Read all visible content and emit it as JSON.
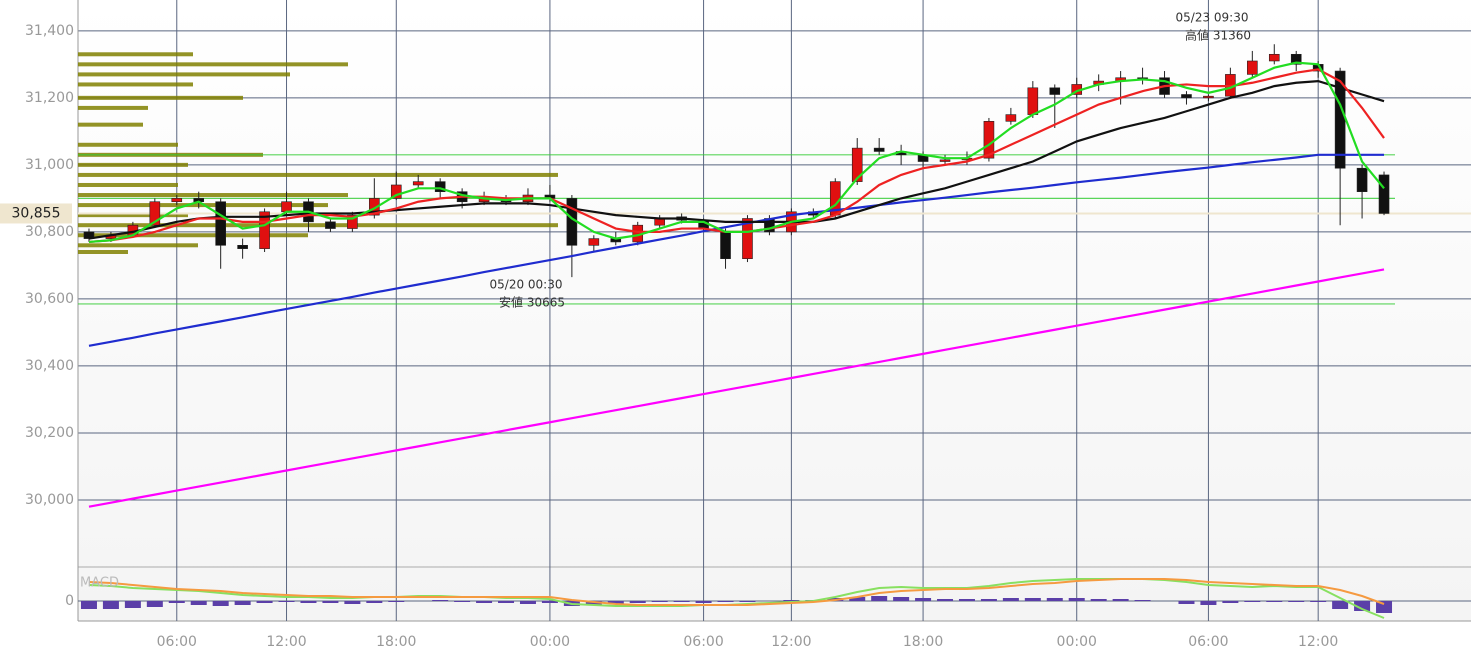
{
  "chart_data": {
    "type": "candlestick",
    "categories": [
      null,
      null,
      null,
      null,
      "06:00",
      null,
      null,
      null,
      null,
      "12:00",
      null,
      null,
      null,
      null,
      "18:00",
      null,
      null,
      null,
      null,
      null,
      null,
      "00:00",
      null,
      null,
      null,
      null,
      null,
      null,
      "06:00",
      null,
      null,
      null,
      "12:00",
      null,
      null,
      null,
      null,
      null,
      "18:00",
      null,
      null,
      null,
      null,
      null,
      null,
      "00:00",
      null,
      null,
      null,
      null,
      null,
      "06:00",
      null,
      null,
      null,
      null,
      "12:00",
      null,
      null,
      null
    ],
    "candles": [
      [
        30800,
        30810,
        30770,
        30780
      ],
      [
        30780,
        30800,
        30770,
        30790
      ],
      [
        30790,
        30830,
        30785,
        30820
      ],
      [
        30820,
        30900,
        30815,
        30890
      ],
      [
        30890,
        30910,
        30880,
        30900
      ],
      [
        30900,
        30920,
        30870,
        30890
      ],
      [
        30890,
        30900,
        30690,
        30760
      ],
      [
        30760,
        30780,
        30720,
        30750
      ],
      [
        30750,
        30870,
        30740,
        30860
      ],
      [
        30860,
        30920,
        30850,
        30890
      ],
      [
        30890,
        30900,
        30800,
        30830
      ],
      [
        30830,
        30840,
        30800,
        30810
      ],
      [
        30810,
        30860,
        30800,
        30850
      ],
      [
        30850,
        30960,
        30840,
        30900
      ],
      [
        30900,
        30980,
        30895,
        30940
      ],
      [
        30940,
        30970,
        30930,
        30950
      ],
      [
        30950,
        30960,
        30900,
        30920
      ],
      [
        30920,
        30930,
        30870,
        30890
      ],
      [
        30890,
        30920,
        30880,
        30900
      ],
      [
        30900,
        30910,
        30880,
        30890
      ],
      [
        30890,
        30930,
        30880,
        30910
      ],
      [
        30910,
        30940,
        30890,
        30900
      ],
      [
        30900,
        30910,
        30665,
        30760
      ],
      [
        30760,
        30790,
        30740,
        30780
      ],
      [
        30780,
        30800,
        30760,
        30770
      ],
      [
        30770,
        30830,
        30760,
        30820
      ],
      [
        30820,
        30850,
        30810,
        30840
      ],
      [
        30845,
        30855,
        30825,
        30835
      ],
      [
        30835,
        30840,
        30800,
        30810
      ],
      [
        30800,
        30810,
        30690,
        30720
      ],
      [
        30720,
        30850,
        30710,
        30840
      ],
      [
        30840,
        30850,
        30790,
        30800
      ],
      [
        30800,
        30870,
        30790,
        30860
      ],
      [
        30860,
        30870,
        30840,
        30850
      ],
      [
        30850,
        30960,
        30840,
        30950
      ],
      [
        30950,
        31080,
        30940,
        31050
      ],
      [
        31050,
        31080,
        31030,
        31040
      ],
      [
        31040,
        31060,
        31000,
        31030
      ],
      [
        31030,
        31040,
        30990,
        31010
      ],
      [
        31010,
        31030,
        31000,
        31015
      ],
      [
        31015,
        31040,
        31000,
        31020
      ],
      [
        31020,
        31140,
        31010,
        31130
      ],
      [
        31130,
        31170,
        31120,
        31150
      ],
      [
        31150,
        31250,
        31140,
        31230
      ],
      [
        31230,
        31240,
        31110,
        31210
      ],
      [
        31210,
        31260,
        31200,
        31240
      ],
      [
        31240,
        31270,
        31220,
        31250
      ],
      [
        31250,
        31280,
        31180,
        31260
      ],
      [
        31260,
        31290,
        31240,
        31255
      ],
      [
        31260,
        31280,
        31200,
        31210
      ],
      [
        31210,
        31220,
        31180,
        31200
      ],
      [
        31200,
        31210,
        31190,
        31205
      ],
      [
        31205,
        31290,
        31200,
        31270
      ],
      [
        31270,
        31340,
        31260,
        31310
      ],
      [
        31310,
        31360,
        31300,
        31330
      ],
      [
        31330,
        31340,
        31280,
        31300
      ],
      [
        31300,
        31310,
        31260,
        31280
      ],
      [
        31280,
        31290,
        30820,
        30990
      ],
      [
        30990,
        31000,
        30840,
        30920
      ],
      [
        30970,
        30980,
        30850,
        30855
      ]
    ],
    "up_color": "#e01010",
    "down_color": "#111111",
    "ylim": [
      29800,
      31492
    ],
    "yticks": [
      {
        "value": 30000,
        "label": "30,000"
      },
      {
        "value": 30200,
        "label": "30,200"
      },
      {
        "value": 30400,
        "label": "30,400"
      },
      {
        "value": 30600,
        "label": "30,600"
      },
      {
        "value": 30800,
        "label": "30,800"
      },
      {
        "value": 31000,
        "label": "31,000"
      },
      {
        "value": 31200,
        "label": "31,200"
      },
      {
        "value": 31400,
        "label": "31,400"
      }
    ],
    "grid": true,
    "series": [
      {
        "color": "#ff00ff",
        "values": [
          29980,
          29992,
          30004,
          30016,
          30028,
          30040,
          30052,
          30064,
          30076,
          30088,
          30100,
          30112,
          30124,
          30136,
          30148,
          30160,
          30172,
          30184,
          30196,
          30208,
          30220,
          30232,
          30244,
          30256,
          30268,
          30280,
          30292,
          30304,
          30316,
          30328,
          30340,
          30352,
          30364,
          30376,
          30388,
          30400,
          30412,
          30424,
          30436,
          30448,
          30460,
          30472,
          30484,
          30496,
          30508,
          30520,
          30532,
          30544,
          30556,
          30568,
          30580,
          30592,
          30604,
          30616,
          30628,
          30640,
          30652,
          30664,
          30676,
          30688
        ]
      },
      {
        "color": "#1f2ccf",
        "values": [
          30460,
          30472,
          30484,
          30497,
          30509,
          30521,
          30533,
          30545,
          30558,
          30570,
          30582,
          30594,
          30606,
          30619,
          30631,
          30643,
          30655,
          30667,
          30680,
          30692,
          30704,
          30716,
          30728,
          30741,
          30753,
          30765,
          30777,
          30789,
          30802,
          30814,
          30826,
          30838,
          30850,
          30858,
          30865,
          30872,
          30880,
          30888,
          30895,
          30902,
          30910,
          30918,
          30925,
          30932,
          30940,
          30948,
          30955,
          30962,
          30970,
          30978,
          30985,
          30992,
          31000,
          31008,
          31015,
          31022,
          31030,
          31030,
          31030,
          31030
        ]
      },
      {
        "color": "#111111",
        "values": [
          30780,
          30790,
          30800,
          30815,
          30830,
          30840,
          30845,
          30845,
          30845,
          30850,
          30855,
          30855,
          30855,
          30860,
          30865,
          30870,
          30875,
          30880,
          30885,
          30885,
          30885,
          30880,
          30870,
          30860,
          30850,
          30845,
          30840,
          30840,
          30835,
          30830,
          30830,
          30830,
          30830,
          30830,
          30840,
          30860,
          30880,
          30900,
          30915,
          30930,
          30950,
          30970,
          30990,
          31010,
          31040,
          31070,
          31090,
          31110,
          31125,
          31140,
          31160,
          31180,
          31200,
          31215,
          31235,
          31245,
          31250,
          31230,
          31210,
          31190
        ]
      },
      {
        "color": "#ee2222",
        "values": [
          30770,
          30775,
          30785,
          30800,
          30820,
          30840,
          30840,
          30830,
          30830,
          30840,
          30850,
          30850,
          30845,
          30855,
          30870,
          30890,
          30900,
          30905,
          30905,
          30900,
          30900,
          30900,
          30870,
          30840,
          30810,
          30800,
          30800,
          30810,
          30810,
          30800,
          30800,
          30810,
          30820,
          30830,
          30850,
          30890,
          30940,
          30970,
          30990,
          31000,
          31010,
          31030,
          31060,
          31090,
          31120,
          31150,
          31180,
          31200,
          31220,
          31235,
          31240,
          31235,
          31235,
          31245,
          31260,
          31275,
          31285,
          31250,
          31170,
          31080
        ]
      },
      {
        "color": "#22dd22",
        "values": [
          30770,
          30775,
          30790,
          30830,
          30870,
          30890,
          30850,
          30810,
          30820,
          30860,
          30860,
          30840,
          30840,
          30870,
          30910,
          30930,
          30930,
          30910,
          30900,
          30895,
          30900,
          30900,
          30840,
          30800,
          30780,
          30790,
          30810,
          30830,
          30830,
          30800,
          30800,
          30810,
          30830,
          30840,
          30880,
          30960,
          31020,
          31040,
          31030,
          31020,
          31020,
          31060,
          31110,
          31150,
          31180,
          31220,
          31240,
          31250,
          31255,
          31250,
          31230,
          31215,
          31230,
          31260,
          31290,
          31305,
          31300,
          31180,
          31010,
          30930
        ]
      }
    ],
    "levels": [
      {
        "value": 31030,
        "color": "#33cc33"
      },
      {
        "value": 30900,
        "color": "#33cc33"
      },
      {
        "value": 30585,
        "color": "#33cc33"
      }
    ],
    "current_price": {
      "value": 30855,
      "label": "30,855",
      "color": "#efe6cf"
    },
    "volume_profile": {
      "color": "#808000",
      "prices": [
        31330,
        31300,
        31270,
        31240,
        31200,
        31170,
        31120,
        31060,
        31030,
        31000,
        30970,
        30940,
        30910,
        30880,
        30850,
        30820,
        30790,
        30760,
        30740
      ],
      "values": [
        115,
        270,
        212,
        115,
        165,
        70,
        65,
        100,
        185,
        110,
        480,
        100,
        270,
        250,
        110,
        480,
        230,
        120,
        50
      ]
    },
    "annotations": {
      "high_date": "05/23 09:30",
      "high_label": "高値 31360",
      "low_date": "05/20 00:30",
      "low_label": "安値 30665"
    },
    "macd": {
      "label": "MACD",
      "ylim": [
        -20,
        34
      ],
      "yticks": [
        0
      ],
      "histogram": {
        "color": "#5b3fa8",
        "values": [
          -8,
          -8,
          -7,
          -6,
          -2,
          -4,
          -5,
          -4,
          -2,
          -1,
          -2,
          -2,
          -3,
          -2,
          -1,
          0,
          1,
          -1,
          -2,
          -2,
          -3,
          -2,
          -5,
          -4,
          -3,
          -2,
          -1,
          -1,
          -2,
          -1,
          -1,
          0,
          1,
          1,
          3,
          4,
          5,
          4,
          3,
          2,
          2,
          2,
          3,
          3,
          3,
          3,
          2,
          2,
          1,
          0,
          -3,
          -4,
          -2,
          -1,
          -1,
          -1,
          -1,
          -8,
          -10,
          -12
        ]
      },
      "series": [
        {
          "color": "#88e060",
          "values": [
            16,
            15,
            13,
            12,
            11,
            10,
            8,
            6,
            5,
            4,
            4,
            3,
            3,
            4,
            4,
            5,
            5,
            4,
            4,
            3,
            3,
            2,
            -3,
            -4,
            -5,
            -5,
            -5,
            -5,
            -4,
            -4,
            -3,
            -2,
            -1,
            0,
            4,
            9,
            13,
            14,
            13,
            13,
            13,
            15,
            18,
            20,
            21,
            22,
            22,
            22,
            22,
            21,
            19,
            16,
            15,
            14,
            15,
            14,
            14,
            3,
            -8,
            -17
          ]
        },
        {
          "color": "#f59a40",
          "values": [
            19,
            18,
            16,
            14,
            12,
            11,
            10,
            8,
            7,
            6,
            5,
            5,
            4,
            4,
            4,
            4,
            4,
            4,
            4,
            4,
            4,
            4,
            1,
            -1,
            -3,
            -4,
            -4,
            -4,
            -4,
            -4,
            -4,
            -3,
            -2,
            -1,
            1,
            4,
            8,
            10,
            11,
            12,
            12,
            13,
            15,
            17,
            18,
            20,
            21,
            22,
            22,
            22,
            21,
            19,
            18,
            17,
            16,
            15,
            15,
            11,
            5,
            -3
          ]
        }
      ]
    }
  }
}
